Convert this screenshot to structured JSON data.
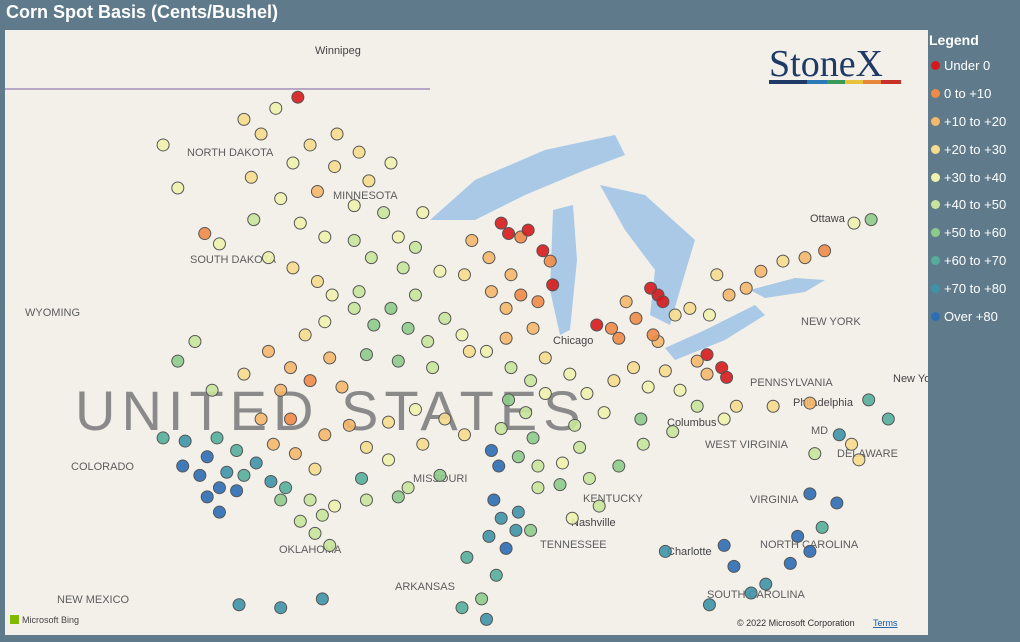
{
  "header": {
    "title": "Corn Spot Basis (Cents/Bushel)"
  },
  "legend": {
    "title": "Legend",
    "items": [
      {
        "label": "Under 0",
        "color": "#d7191c"
      },
      {
        "label": "0 to +10",
        "color": "#ef8a47"
      },
      {
        "label": "+10 to +20",
        "color": "#f5b76a"
      },
      {
        "label": "+20 to +30",
        "color": "#f7dc8e"
      },
      {
        "label": "+30 to +40",
        "color": "#eef2ad"
      },
      {
        "label": "+40 to +50",
        "color": "#c8e49b"
      },
      {
        "label": "+50 to +60",
        "color": "#8dcb8b"
      },
      {
        "label": "+60 to +70",
        "color": "#55ae9c"
      },
      {
        "label": "+70 to +80",
        "color": "#3e93a8"
      },
      {
        "label": "Over +80",
        "color": "#2c6db5"
      }
    ]
  },
  "map": {
    "labels": [
      "UNITED STATES",
      "Winnipeg",
      "NORTH DAKOTA",
      "MINNESOTA",
      "SOUTH DAKOTA",
      "WYOMING",
      "COLORADO",
      "MISSOURI",
      "OKLAHOMA",
      "NEW MEXICO",
      "ARKANSAS",
      "TENNESSEE",
      "Nashville",
      "KENTUCKY",
      "VIRGINIA",
      "WEST VIRGINIA",
      "Columbus",
      "Chicago",
      "PENNSYLVANIA",
      "Philadelphia",
      "New York",
      "NEW YORK",
      "Ottawa",
      "DELAWARE",
      "MD",
      "Charlotte",
      "NORTH CAROLINA",
      "SOUTH CAROLINA"
    ],
    "points": [
      [
        -100.5,
        48.2,
        3
      ],
      [
        -99.8,
        47.8,
        3
      ],
      [
        -99.2,
        48.5,
        4
      ],
      [
        -98.3,
        48.8,
        0
      ],
      [
        -97.8,
        47.5,
        3
      ],
      [
        -98.5,
        47.0,
        4
      ],
      [
        -100.2,
        46.6,
        3
      ],
      [
        -97.5,
        46.2,
        2
      ],
      [
        -96.8,
        46.9,
        3
      ],
      [
        -96.7,
        47.8,
        3
      ],
      [
        -99.0,
        46.0,
        4
      ],
      [
        -100.1,
        45.4,
        5
      ],
      [
        -98.2,
        45.3,
        4
      ],
      [
        -97.2,
        44.9,
        4
      ],
      [
        -99.5,
        44.3,
        4
      ],
      [
        -98.5,
        44.0,
        3
      ],
      [
        -97.5,
        43.6,
        3
      ],
      [
        -96.9,
        43.2,
        4
      ],
      [
        -101.5,
        44.7,
        4
      ],
      [
        -103.2,
        46.3,
        4
      ],
      [
        -103.8,
        47.5,
        4
      ],
      [
        -102.1,
        45.0,
        1
      ],
      [
        -96.0,
        45.8,
        4
      ],
      [
        -95.4,
        46.5,
        3
      ],
      [
        -94.8,
        45.6,
        5
      ],
      [
        -94.2,
        44.9,
        4
      ],
      [
        -93.5,
        44.6,
        5
      ],
      [
        -95.3,
        44.3,
        5
      ],
      [
        -94.0,
        44.0,
        5
      ],
      [
        -92.5,
        43.9,
        4
      ],
      [
        -96.0,
        44.8,
        5
      ],
      [
        -93.2,
        45.6,
        4
      ],
      [
        -95.8,
        47.3,
        3
      ],
      [
        -94.5,
        47.0,
        4
      ],
      [
        -96.0,
        42.8,
        5
      ],
      [
        -95.2,
        42.3,
        6
      ],
      [
        -94.5,
        42.8,
        6
      ],
      [
        -93.8,
        42.2,
        6
      ],
      [
        -93.0,
        41.8,
        5
      ],
      [
        -92.3,
        42.5,
        5
      ],
      [
        -91.6,
        42.0,
        4
      ],
      [
        -95.5,
        41.4,
        6
      ],
      [
        -94.2,
        41.2,
        6
      ],
      [
        -92.8,
        41.0,
        5
      ],
      [
        -91.3,
        41.5,
        3
      ],
      [
        -93.5,
        43.2,
        5
      ],
      [
        -95.8,
        43.3,
        5
      ],
      [
        -99.5,
        41.5,
        2
      ],
      [
        -98.6,
        41.0,
        2
      ],
      [
        -97.8,
        40.6,
        1
      ],
      [
        -97.0,
        41.3,
        2
      ],
      [
        -96.5,
        40.4,
        2
      ],
      [
        -99.0,
        40.3,
        2
      ],
      [
        -100.5,
        40.8,
        3
      ],
      [
        -101.8,
        40.3,
        5
      ],
      [
        -98.0,
        42.0,
        3
      ],
      [
        -97.2,
        42.4,
        4
      ],
      [
        -103.2,
        41.2,
        6
      ],
      [
        -102.5,
        41.8,
        5
      ],
      [
        -101.6,
        38.8,
        7
      ],
      [
        -100.8,
        38.4,
        7
      ],
      [
        -100.0,
        38.0,
        8
      ],
      [
        -99.3,
        38.6,
        2
      ],
      [
        -98.4,
        38.3,
        2
      ],
      [
        -97.6,
        37.8,
        3
      ],
      [
        -97.2,
        38.9,
        2
      ],
      [
        -96.2,
        39.2,
        2
      ],
      [
        -95.5,
        38.5,
        3
      ],
      [
        -98.6,
        39.4,
        1
      ],
      [
        -99.8,
        39.4,
        2
      ],
      [
        -100.5,
        37.6,
        7
      ],
      [
        -99.4,
        37.4,
        8
      ],
      [
        -98.8,
        37.2,
        7
      ],
      [
        -95.7,
        37.5,
        7
      ],
      [
        -102.3,
        37.6,
        9
      ],
      [
        -101.5,
        37.2,
        9
      ],
      [
        -102.0,
        36.9,
        9
      ],
      [
        -100.8,
        37.1,
        9
      ],
      [
        -103.0,
        37.9,
        9
      ],
      [
        -101.2,
        37.7,
        8
      ],
      [
        -102.9,
        38.7,
        8
      ],
      [
        -103.8,
        38.8,
        7
      ],
      [
        -102.0,
        38.2,
        9
      ],
      [
        -101.5,
        36.4,
        9
      ],
      [
        -97.8,
        36.8,
        5
      ],
      [
        -97.3,
        36.3,
        5
      ],
      [
        -98.2,
        36.1,
        5
      ],
      [
        -97.6,
        35.7,
        5
      ],
      [
        -96.8,
        36.6,
        4
      ],
      [
        -99.0,
        36.8,
        6
      ],
      [
        -97.0,
        35.3,
        5
      ],
      [
        -95.5,
        36.8,
        5
      ],
      [
        -97.3,
        33.5,
        8
      ],
      [
        -99.0,
        33.2,
        8
      ],
      [
        -100.7,
        33.3,
        8
      ],
      [
        -94.6,
        39.3,
        3
      ],
      [
        -93.5,
        39.7,
        4
      ],
      [
        -92.3,
        39.4,
        3
      ],
      [
        -91.5,
        38.9,
        3
      ],
      [
        -93.2,
        38.6,
        3
      ],
      [
        -94.6,
        38.1,
        4
      ],
      [
        -93.8,
        37.2,
        5
      ],
      [
        -92.5,
        37.6,
        6
      ],
      [
        -90.4,
        38.4,
        9
      ],
      [
        -90.1,
        37.9,
        9
      ],
      [
        -94.2,
        36.9,
        6
      ],
      [
        -90.6,
        41.5,
        4
      ],
      [
        -89.6,
        41.0,
        5
      ],
      [
        -88.8,
        40.6,
        5
      ],
      [
        -89.7,
        40.0,
        6
      ],
      [
        -89.0,
        39.6,
        5
      ],
      [
        -88.2,
        40.2,
        4
      ],
      [
        -90.0,
        39.1,
        5
      ],
      [
        -88.7,
        38.8,
        6
      ],
      [
        -89.3,
        38.2,
        6
      ],
      [
        -88.2,
        41.3,
        3
      ],
      [
        -88.5,
        37.9,
        5
      ],
      [
        -89.8,
        41.9,
        2
      ],
      [
        -88.7,
        42.2,
        2
      ],
      [
        -87.2,
        40.8,
        4
      ],
      [
        -86.5,
        40.2,
        4
      ],
      [
        -85.8,
        39.6,
        4
      ],
      [
        -87.0,
        39.2,
        5
      ],
      [
        -85.4,
        40.6,
        3
      ],
      [
        -84.6,
        41.0,
        3
      ],
      [
        -84.0,
        40.4,
        4
      ],
      [
        -83.3,
        40.9,
        3
      ],
      [
        -82.7,
        40.3,
        4
      ],
      [
        -82.0,
        39.8,
        5
      ],
      [
        -84.3,
        39.4,
        6
      ],
      [
        -86.8,
        38.5,
        5
      ],
      [
        -87.5,
        38.0,
        4
      ],
      [
        -83.0,
        39.0,
        5
      ],
      [
        -89.6,
        43.8,
        2
      ],
      [
        -90.5,
        44.3,
        2
      ],
      [
        -91.2,
        44.8,
        2
      ],
      [
        -89.2,
        44.9,
        1
      ],
      [
        -90.0,
        45.3,
        0
      ],
      [
        -89.7,
        45.0,
        0
      ],
      [
        -88.9,
        45.1,
        0
      ],
      [
        -88.3,
        44.5,
        0
      ],
      [
        -88.0,
        44.2,
        1
      ],
      [
        -87.9,
        43.5,
        0
      ],
      [
        -90.4,
        43.3,
        2
      ],
      [
        -89.2,
        43.2,
        1
      ],
      [
        -91.5,
        43.8,
        3
      ],
      [
        -88.5,
        43.0,
        1
      ],
      [
        -89.8,
        42.8,
        2
      ],
      [
        -86.1,
        42.3,
        0
      ],
      [
        -85.5,
        42.2,
        1
      ],
      [
        -84.5,
        42.5,
        1
      ],
      [
        -83.9,
        43.4,
        0
      ],
      [
        -83.6,
        43.2,
        0
      ],
      [
        -83.4,
        43.0,
        0
      ],
      [
        -84.9,
        43.0,
        2
      ],
      [
        -85.2,
        41.9,
        1
      ],
      [
        -83.6,
        41.8,
        2
      ],
      [
        -82.9,
        42.6,
        3
      ],
      [
        -83.8,
        42.0,
        1
      ],
      [
        -82.0,
        41.2,
        2
      ],
      [
        -81.6,
        40.8,
        2
      ],
      [
        -81.0,
        41.0,
        0
      ],
      [
        -80.8,
        40.7,
        0
      ],
      [
        -81.6,
        41.4,
        0
      ],
      [
        -80.4,
        39.8,
        3
      ],
      [
        -80.9,
        39.4,
        4
      ],
      [
        -78.9,
        39.8,
        3
      ],
      [
        -77.4,
        39.9,
        2
      ],
      [
        -81.5,
        42.6,
        4
      ],
      [
        -80.7,
        43.2,
        2
      ],
      [
        -80.0,
        43.4,
        2
      ],
      [
        -79.4,
        43.9,
        2
      ],
      [
        -78.5,
        44.2,
        3
      ],
      [
        -77.6,
        44.3,
        2
      ],
      [
        -76.8,
        44.5,
        1
      ],
      [
        -82.3,
        42.8,
        3
      ],
      [
        -81.2,
        43.8,
        3
      ],
      [
        -75.6,
        45.3,
        4
      ],
      [
        -74.9,
        45.4,
        6
      ],
      [
        -88.5,
        37.2,
        5
      ],
      [
        -87.6,
        37.3,
        6
      ],
      [
        -86.4,
        37.5,
        5
      ],
      [
        -85.2,
        37.9,
        6
      ],
      [
        -86.0,
        36.6,
        5
      ],
      [
        -87.1,
        36.2,
        4
      ],
      [
        -88.8,
        35.8,
        6
      ],
      [
        -89.3,
        36.4,
        8
      ],
      [
        -89.8,
        35.2,
        9
      ],
      [
        -89.4,
        35.8,
        8
      ],
      [
        -84.2,
        38.6,
        5
      ],
      [
        -90.5,
        35.6,
        8
      ],
      [
        -90.2,
        34.3,
        7
      ],
      [
        -91.4,
        34.9,
        7
      ],
      [
        -90.8,
        33.5,
        6
      ],
      [
        -91.6,
        33.2,
        7
      ],
      [
        -90.6,
        32.8,
        8
      ],
      [
        -90.3,
        36.8,
        9
      ],
      [
        -90.0,
        36.2,
        8
      ],
      [
        -77.2,
        38.3,
        5
      ],
      [
        -76.2,
        38.9,
        8
      ],
      [
        -75.7,
        38.6,
        3
      ],
      [
        -75.4,
        38.1,
        3
      ],
      [
        -77.4,
        37.0,
        9
      ],
      [
        -76.3,
        36.7,
        9
      ],
      [
        -74.2,
        39.4,
        7
      ],
      [
        -75.0,
        40.0,
        7
      ],
      [
        -77.9,
        35.6,
        9
      ],
      [
        -77.4,
        35.1,
        9
      ],
      [
        -78.2,
        34.7,
        9
      ],
      [
        -76.9,
        35.9,
        7
      ],
      [
        -79.2,
        34.0,
        8
      ],
      [
        -79.8,
        33.7,
        8
      ],
      [
        -80.5,
        34.6,
        9
      ],
      [
        -81.5,
        33.3,
        8
      ],
      [
        -83.3,
        35.1,
        8
      ],
      [
        -80.9,
        35.3,
        9
      ]
    ]
  },
  "logo": "StoneX",
  "attribution": {
    "bing": "Microsoft Bing",
    "copyright": "© 2022 Microsoft Corporation",
    "terms": "Terms"
  }
}
